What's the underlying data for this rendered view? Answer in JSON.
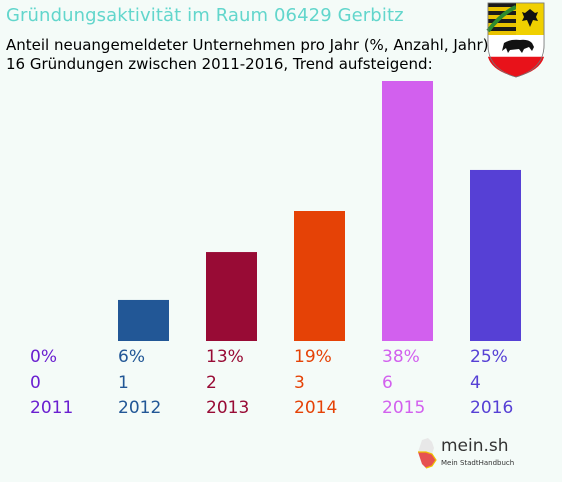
{
  "header": {
    "title": "Gründungsaktivität im Raum 06429 Gerbitz",
    "subtitle_line1": "Anteil neuangemeldeter Unternehmen pro Jahr (%, Anzahl, Jahr)",
    "subtitle_line2": "16 Gründungen zwischen 2011-2016, Trend aufsteigend:"
  },
  "chart_data": {
    "type": "bar",
    "categories": [
      "2011",
      "2012",
      "2013",
      "2014",
      "2015",
      "2016"
    ],
    "values": [
      0,
      6,
      13,
      19,
      38,
      25
    ],
    "counts": [
      "0",
      "1",
      "2",
      "3",
      "6",
      "4"
    ],
    "percent_labels": [
      "0%",
      "6%",
      "13%",
      "19%",
      "38%",
      "25%"
    ],
    "colors": [
      "#6a1fd0",
      "#225796",
      "#980b35",
      "#e54206",
      "#d260ee",
      "#5640d5"
    ],
    "ylim": [
      0,
      38
    ],
    "grid": false,
    "title": "",
    "xlabel": "",
    "ylabel": ""
  },
  "branding": {
    "crest_icon": "saxony-anhalt-coat-of-arms-icon",
    "logo_icon": "germany-map-logo-icon",
    "logo_text": "mein.sh",
    "logo_subtext": "Mein StadtHandbuch"
  }
}
